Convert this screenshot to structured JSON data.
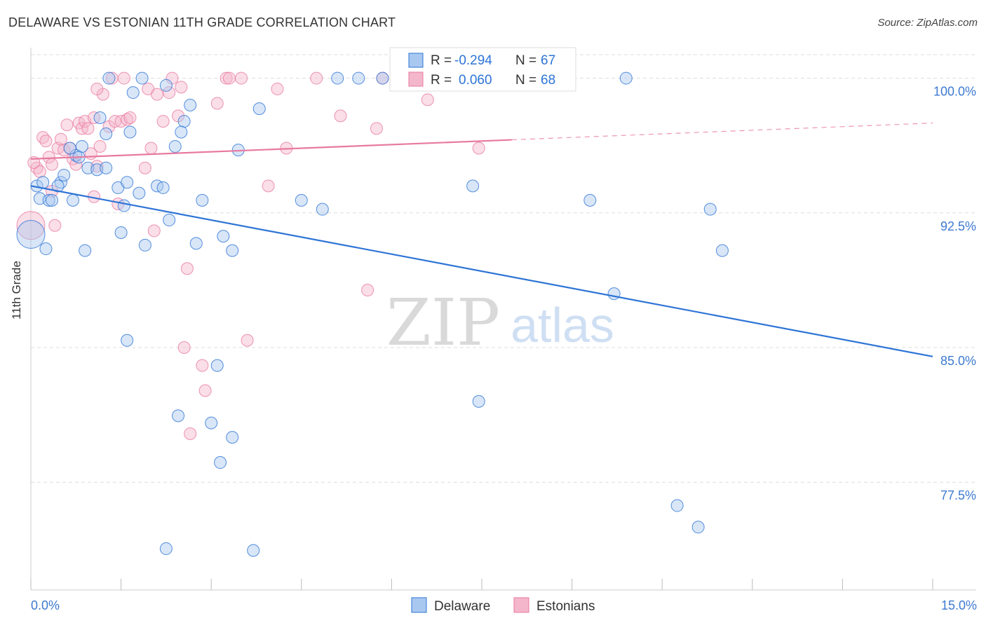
{
  "title": "DELAWARE VS ESTONIAN 11TH GRADE CORRELATION CHART",
  "source": "Source: ZipAtlas.com",
  "watermark": {
    "zip": "ZIP",
    "atlas": "atlas"
  },
  "colors": {
    "blue": "#2d74d6",
    "blue_fill": "#a9c8f0",
    "pink": "#e87aa0",
    "pink_fill": "#f4b6cb",
    "axis_text": "#3e7ad1",
    "grid": "#dddddd"
  },
  "legend": {
    "rows": [
      {
        "r_label": "R =",
        "r_value": "-0.294",
        "n_label": "N =",
        "n_value": "67",
        "series": "blue"
      },
      {
        "r_label": "R =",
        "r_value": "0.060",
        "n_label": "N =",
        "n_value": "68",
        "series": "pink"
      }
    ]
  },
  "chart_data": {
    "type": "scatter",
    "title": "DELAWARE VS ESTONIAN 11TH GRADE CORRELATION CHART",
    "xlabel": "",
    "ylabel": "11th Grade",
    "x_unit": "%",
    "xlim": [
      0,
      15
    ],
    "ylim": [
      71.5,
      101.7
    ],
    "x_tick_labels": [
      "0.0%",
      "15.0%"
    ],
    "y_ticks": [
      100,
      92.5,
      85,
      77.5
    ],
    "y_tick_labels": [
      "100.0%",
      "92.5%",
      "85.0%",
      "77.5%"
    ],
    "grid": true,
    "legend_position": "bottom-center",
    "series": [
      {
        "name": "Delaware",
        "color": "#2d74d6",
        "r": -0.294,
        "n": 67,
        "trend": {
          "x": [
            0,
            15
          ],
          "y": [
            94.0,
            84.5
          ],
          "dashed_from": null
        },
        "points": [
          [
            0.0,
            91.3
          ],
          [
            0.1,
            94.0
          ],
          [
            0.2,
            94.2
          ],
          [
            0.15,
            93.3
          ],
          [
            0.3,
            93.2
          ],
          [
            0.35,
            93.2
          ],
          [
            0.25,
            90.5
          ],
          [
            0.5,
            94.2
          ],
          [
            0.55,
            94.6
          ],
          [
            0.7,
            93.2
          ],
          [
            0.75,
            95.7
          ],
          [
            0.85,
            96.2
          ],
          [
            0.95,
            95.0
          ],
          [
            1.1,
            94.9
          ],
          [
            0.65,
            96.1
          ],
          [
            0.8,
            95.6
          ],
          [
            1.15,
            97.8
          ],
          [
            1.25,
            96.9
          ],
          [
            1.3,
            100.0
          ],
          [
            1.7,
            99.2
          ],
          [
            1.65,
            97.0
          ],
          [
            1.45,
            93.9
          ],
          [
            1.6,
            94.2
          ],
          [
            1.8,
            93.6
          ],
          [
            1.55,
            92.9
          ],
          [
            1.5,
            91.4
          ],
          [
            1.9,
            90.7
          ],
          [
            2.1,
            94.0
          ],
          [
            2.2,
            93.9
          ],
          [
            2.3,
            92.1
          ],
          [
            2.4,
            96.2
          ],
          [
            2.55,
            97.6
          ],
          [
            2.5,
            97.0
          ],
          [
            2.65,
            98.5
          ],
          [
            2.25,
            99.6
          ],
          [
            2.75,
            90.8
          ],
          [
            2.85,
            93.2
          ],
          [
            3.2,
            91.2
          ],
          [
            3.45,
            96.0
          ],
          [
            3.35,
            90.4
          ],
          [
            3.8,
            98.3
          ],
          [
            4.5,
            93.2
          ],
          [
            4.85,
            92.7
          ],
          [
            5.1,
            100.0
          ],
          [
            5.45,
            100.0
          ],
          [
            5.85,
            100.0
          ],
          [
            0.9,
            90.4
          ],
          [
            1.85,
            100.0
          ],
          [
            1.6,
            85.4
          ],
          [
            3.1,
            84.0
          ],
          [
            2.45,
            81.2
          ],
          [
            3.0,
            80.8
          ],
          [
            3.35,
            80.0
          ],
          [
            3.15,
            78.6
          ],
          [
            2.25,
            73.8
          ],
          [
            3.7,
            73.7
          ],
          [
            7.35,
            94.0
          ],
          [
            7.45,
            82.0
          ],
          [
            9.3,
            93.2
          ],
          [
            9.7,
            88.0
          ],
          [
            9.9,
            100.0
          ],
          [
            11.3,
            92.7
          ],
          [
            11.5,
            90.4
          ],
          [
            10.75,
            76.2
          ],
          [
            11.1,
            75.0
          ],
          [
            1.25,
            95.0
          ],
          [
            0.45,
            94.0
          ]
        ]
      },
      {
        "name": "Estonians",
        "color": "#e87aa0",
        "r": 0.06,
        "n": 68,
        "trend": {
          "x": [
            0,
            15
          ],
          "y": [
            95.5,
            97.5
          ],
          "dashed_from": 8.0
        },
        "points": [
          [
            0.0,
            91.8
          ],
          [
            0.1,
            95.0
          ],
          [
            0.15,
            94.8
          ],
          [
            0.2,
            96.7
          ],
          [
            0.25,
            96.5
          ],
          [
            0.3,
            95.6
          ],
          [
            0.35,
            95.2
          ],
          [
            0.45,
            96.1
          ],
          [
            0.5,
            96.6
          ],
          [
            0.55,
            96.0
          ],
          [
            0.6,
            97.4
          ],
          [
            0.65,
            96.1
          ],
          [
            0.7,
            95.5
          ],
          [
            0.75,
            95.2
          ],
          [
            0.8,
            97.5
          ],
          [
            0.85,
            97.2
          ],
          [
            0.9,
            97.6
          ],
          [
            0.95,
            97.2
          ],
          [
            1.0,
            95.8
          ],
          [
            1.05,
            97.8
          ],
          [
            1.1,
            95.1
          ],
          [
            1.15,
            96.2
          ],
          [
            1.2,
            99.1
          ],
          [
            1.3,
            97.3
          ],
          [
            1.4,
            97.6
          ],
          [
            1.45,
            93.0
          ],
          [
            1.5,
            97.6
          ],
          [
            1.55,
            100.0
          ],
          [
            1.1,
            99.4
          ],
          [
            1.35,
            100.0
          ],
          [
            1.6,
            97.7
          ],
          [
            1.65,
            97.8
          ],
          [
            1.9,
            95.0
          ],
          [
            1.95,
            99.4
          ],
          [
            2.0,
            96.1
          ],
          [
            2.05,
            91.5
          ],
          [
            2.1,
            99.1
          ],
          [
            2.2,
            97.6
          ],
          [
            2.3,
            99.2
          ],
          [
            2.35,
            100.0
          ],
          [
            2.45,
            97.9
          ],
          [
            2.5,
            99.5
          ],
          [
            2.6,
            89.4
          ],
          [
            2.55,
            85.0
          ],
          [
            2.85,
            84.0
          ],
          [
            2.9,
            82.6
          ],
          [
            2.65,
            80.2
          ],
          [
            3.1,
            98.6
          ],
          [
            3.25,
            100.0
          ],
          [
            3.3,
            100.0
          ],
          [
            3.5,
            100.0
          ],
          [
            3.6,
            85.4
          ],
          [
            3.95,
            94.0
          ],
          [
            4.1,
            99.4
          ],
          [
            4.25,
            96.1
          ],
          [
            4.75,
            100.0
          ],
          [
            5.15,
            97.9
          ],
          [
            5.6,
            88.2
          ],
          [
            5.75,
            97.2
          ],
          [
            5.85,
            100.0
          ],
          [
            6.25,
            100.0
          ],
          [
            6.6,
            98.8
          ],
          [
            7.45,
            96.1
          ],
          [
            8.0,
            100.0
          ],
          [
            0.4,
            91.8
          ],
          [
            0.35,
            93.7
          ],
          [
            1.05,
            93.4
          ],
          [
            0.05,
            95.3
          ]
        ]
      }
    ]
  }
}
